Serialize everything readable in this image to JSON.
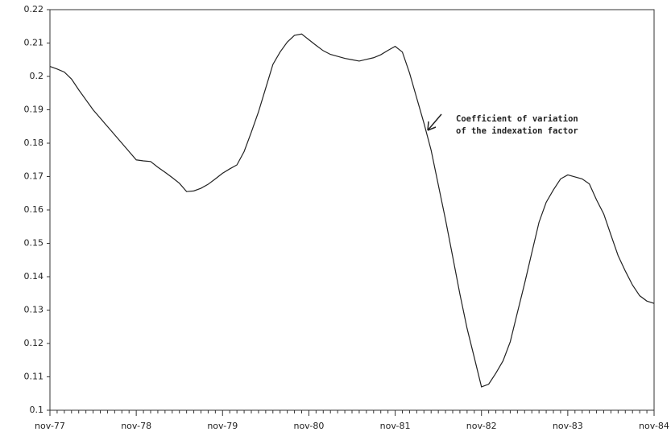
{
  "chart_data": {
    "type": "line",
    "categories": [
      "nov-77",
      null,
      null,
      null,
      null,
      null,
      null,
      null,
      null,
      null,
      null,
      null,
      "nov-78",
      null,
      null,
      null,
      null,
      null,
      null,
      null,
      null,
      null,
      null,
      null,
      "nov-79",
      null,
      null,
      null,
      null,
      null,
      null,
      null,
      null,
      null,
      null,
      null,
      "nov-80",
      null,
      null,
      null,
      null,
      null,
      null,
      null,
      null,
      null,
      null,
      null,
      "nov-81",
      null,
      null,
      null,
      null,
      null,
      null,
      null,
      null,
      null,
      null,
      null,
      "nov-82",
      null,
      null,
      null,
      null,
      null,
      null,
      null,
      null,
      null,
      null,
      null,
      "nov-83",
      null,
      null,
      null,
      null,
      null,
      null,
      null,
      null,
      null,
      null,
      null,
      "nov-84"
    ],
    "values": [
      0.203,
      0.2022,
      0.2013,
      0.1992,
      0.196,
      0.193,
      0.19,
      0.1875,
      0.185,
      0.1825,
      0.18,
      0.1775,
      0.175,
      0.1747,
      0.1745,
      0.1728,
      0.1713,
      0.1697,
      0.168,
      0.1655,
      0.1657,
      0.1665,
      0.1677,
      0.1693,
      0.171,
      0.1723,
      0.1735,
      0.1775,
      0.1833,
      0.1894,
      0.1965,
      0.2036,
      0.2073,
      0.2103,
      0.2123,
      0.2127,
      0.211,
      0.2093,
      0.2077,
      0.2066,
      0.206,
      0.2054,
      0.205,
      0.2046,
      0.2051,
      0.2056,
      0.2065,
      0.2078,
      0.209,
      0.2073,
      0.201,
      0.1935,
      0.186,
      0.1779,
      0.1675,
      0.1571,
      0.146,
      0.1348,
      0.1245,
      0.1158,
      0.107,
      0.1078,
      0.1111,
      0.1148,
      0.1205,
      0.1293,
      0.138,
      0.1472,
      0.1563,
      0.1623,
      0.166,
      0.1693,
      0.1705,
      0.1699,
      0.1693,
      0.1678,
      0.163,
      0.1588,
      0.1525,
      0.1463,
      0.1417,
      0.1375,
      0.1343,
      0.1327,
      0.132
    ],
    "color": "#222222",
    "ylim": [
      0.1,
      0.22
    ],
    "yticks": [
      0.1,
      0.11,
      0.12,
      0.13,
      0.14,
      0.15,
      0.16,
      0.17,
      0.18,
      0.19,
      0.2,
      0.21,
      0.22
    ],
    "annotation": [
      "Coefficient  of variation",
      "of the indexation factor"
    ],
    "grid": false
  }
}
